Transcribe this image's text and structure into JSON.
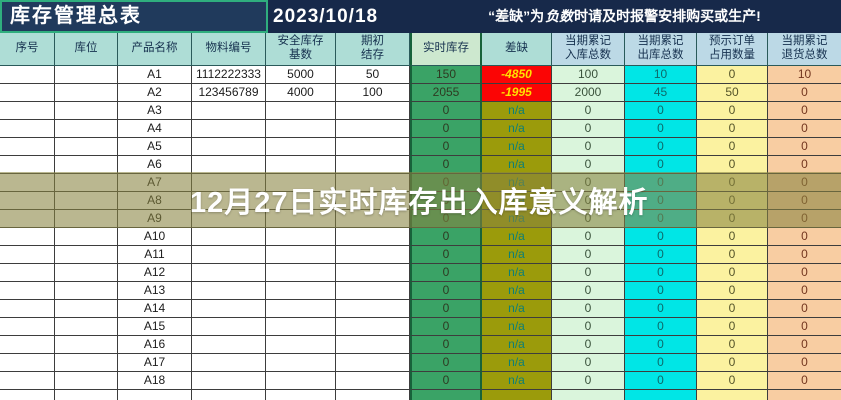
{
  "app": {
    "title": "库存管理总表",
    "date": "2023/10/18",
    "banner": {
      "part1": "“差缺”为",
      "part2": "负数",
      "part3": "时请及时报警安排购买或生产!"
    },
    "overlay_text": "12月27日实时库存出入库意义解析"
  },
  "colors": {
    "shortage_bg": "#fb0505",
    "shortage_text": "#ffe000",
    "realtime_bg": "#3aa366",
    "na_bg": "#9b9b0b",
    "na_text": "#0b7f78",
    "inbound_bg": "#daf5dc",
    "outbound_bg": "#00e6e6",
    "occupied_bg": "#fbf2a0",
    "returns_bg": "#f8cda2",
    "title_border": "#2fae7e",
    "topbar_bg": "#17294a"
  },
  "table": {
    "columns": [
      {
        "label": "序号"
      },
      {
        "label": "库位"
      },
      {
        "label": "产品名称"
      },
      {
        "label": "物料编号"
      },
      {
        "label": "安全库存\n基数"
      },
      {
        "label": "期初\n结存"
      },
      {
        "label": "实时库存"
      },
      {
        "label": "差缺"
      },
      {
        "label": "当期累记\n入库总数"
      },
      {
        "label": "当期累记\n出库总数"
      },
      {
        "label": "预示订单\n占用数量"
      },
      {
        "label": "当期累记\n退货总数"
      }
    ],
    "rows": [
      {
        "seq": "",
        "loc": "",
        "name": "A1",
        "code": "1112222333",
        "safety": "5000",
        "opening": "50",
        "realtime": "150",
        "shortage": "-4850",
        "inbound": "100",
        "outbound": "10",
        "occupied": "0",
        "returns": "10"
      },
      {
        "seq": "",
        "loc": "",
        "name": "A2",
        "code": "123456789",
        "safety": "4000",
        "opening": "100",
        "realtime": "2055",
        "shortage": "-1995",
        "inbound": "2000",
        "outbound": "45",
        "occupied": "50",
        "returns": "0"
      },
      {
        "seq": "",
        "loc": "",
        "name": "A3",
        "code": "",
        "safety": "",
        "opening": "",
        "realtime": "0",
        "shortage": "n/a",
        "inbound": "0",
        "outbound": "0",
        "occupied": "0",
        "returns": "0"
      },
      {
        "seq": "",
        "loc": "",
        "name": "A4",
        "code": "",
        "safety": "",
        "opening": "",
        "realtime": "0",
        "shortage": "n/a",
        "inbound": "0",
        "outbound": "0",
        "occupied": "0",
        "returns": "0"
      },
      {
        "seq": "",
        "loc": "",
        "name": "A5",
        "code": "",
        "safety": "",
        "opening": "",
        "realtime": "0",
        "shortage": "n/a",
        "inbound": "0",
        "outbound": "0",
        "occupied": "0",
        "returns": "0"
      },
      {
        "seq": "",
        "loc": "",
        "name": "A6",
        "code": "",
        "safety": "",
        "opening": "",
        "realtime": "0",
        "shortage": "n/a",
        "inbound": "0",
        "outbound": "0",
        "occupied": "0",
        "returns": "0"
      },
      {
        "seq": "",
        "loc": "",
        "name": "A7",
        "code": "",
        "safety": "",
        "opening": "",
        "realtime": "0",
        "shortage": "n/a",
        "inbound": "0",
        "outbound": "0",
        "occupied": "0",
        "returns": "0"
      },
      {
        "seq": "",
        "loc": "",
        "name": "A8",
        "code": "",
        "safety": "",
        "opening": "",
        "realtime": "0",
        "shortage": "n/a",
        "inbound": "0",
        "outbound": "0",
        "occupied": "0",
        "returns": "0"
      },
      {
        "seq": "",
        "loc": "",
        "name": "A9",
        "code": "",
        "safety": "",
        "opening": "",
        "realtime": "0",
        "shortage": "n/a",
        "inbound": "0",
        "outbound": "0",
        "occupied": "0",
        "returns": "0"
      },
      {
        "seq": "",
        "loc": "",
        "name": "A10",
        "code": "",
        "safety": "",
        "opening": "",
        "realtime": "0",
        "shortage": "n/a",
        "inbound": "0",
        "outbound": "0",
        "occupied": "0",
        "returns": "0"
      },
      {
        "seq": "",
        "loc": "",
        "name": "A11",
        "code": "",
        "safety": "",
        "opening": "",
        "realtime": "0",
        "shortage": "n/a",
        "inbound": "0",
        "outbound": "0",
        "occupied": "0",
        "returns": "0"
      },
      {
        "seq": "",
        "loc": "",
        "name": "A12",
        "code": "",
        "safety": "",
        "opening": "",
        "realtime": "0",
        "shortage": "n/a",
        "inbound": "0",
        "outbound": "0",
        "occupied": "0",
        "returns": "0"
      },
      {
        "seq": "",
        "loc": "",
        "name": "A13",
        "code": "",
        "safety": "",
        "opening": "",
        "realtime": "0",
        "shortage": "n/a",
        "inbound": "0",
        "outbound": "0",
        "occupied": "0",
        "returns": "0"
      },
      {
        "seq": "",
        "loc": "",
        "name": "A14",
        "code": "",
        "safety": "",
        "opening": "",
        "realtime": "0",
        "shortage": "n/a",
        "inbound": "0",
        "outbound": "0",
        "occupied": "0",
        "returns": "0"
      },
      {
        "seq": "",
        "loc": "",
        "name": "A15",
        "code": "",
        "safety": "",
        "opening": "",
        "realtime": "0",
        "shortage": "n/a",
        "inbound": "0",
        "outbound": "0",
        "occupied": "0",
        "returns": "0"
      },
      {
        "seq": "",
        "loc": "",
        "name": "A16",
        "code": "",
        "safety": "",
        "opening": "",
        "realtime": "0",
        "shortage": "n/a",
        "inbound": "0",
        "outbound": "0",
        "occupied": "0",
        "returns": "0"
      },
      {
        "seq": "",
        "loc": "",
        "name": "A17",
        "code": "",
        "safety": "",
        "opening": "",
        "realtime": "0",
        "shortage": "n/a",
        "inbound": "0",
        "outbound": "0",
        "occupied": "0",
        "returns": "0"
      },
      {
        "seq": "",
        "loc": "",
        "name": "A18",
        "code": "",
        "safety": "",
        "opening": "",
        "realtime": "0",
        "shortage": "n/a",
        "inbound": "0",
        "outbound": "0",
        "occupied": "0",
        "returns": "0"
      }
    ],
    "partial_row": {
      "seq": "",
      "loc": "",
      "name": "",
      "code": "",
      "safety": "",
      "opening": "",
      "realtime": "",
      "shortage": "",
      "inbound": "",
      "outbound": "",
      "occupied": "",
      "returns": ""
    }
  }
}
